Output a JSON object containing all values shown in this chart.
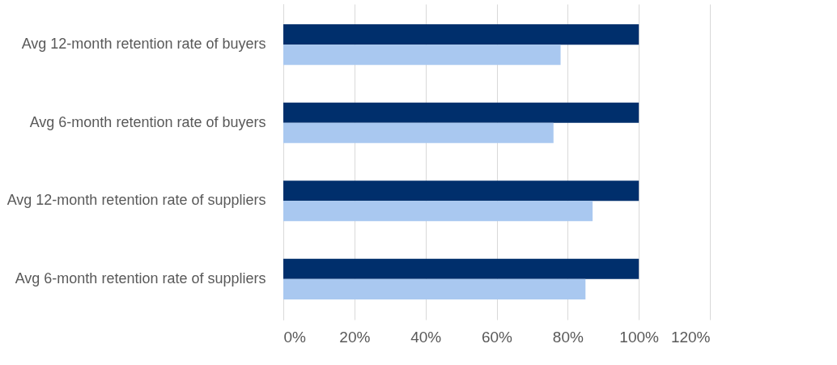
{
  "chart_data": {
    "type": "bar",
    "orientation": "horizontal",
    "categories": [
      "Avg 12-month retention rate of buyers",
      "Avg 6-month retention rate of buyers",
      "Avg 12-month retention rate of suppliers",
      "Avg 6-month retention rate of suppliers"
    ],
    "series": [
      {
        "color": "#002f6c",
        "values": [
          100,
          100,
          100,
          100
        ]
      },
      {
        "color": "#a9c8f0",
        "values": [
          78,
          76,
          87,
          85
        ]
      }
    ],
    "xlim": [
      0,
      120
    ],
    "xticks": [
      {
        "value": 0,
        "label": "0%"
      },
      {
        "value": 20,
        "label": "20%"
      },
      {
        "value": 40,
        "label": "40%"
      },
      {
        "value": 60,
        "label": "60%"
      },
      {
        "value": 80,
        "label": "80%"
      },
      {
        "value": 100,
        "label": "100%"
      },
      {
        "value": 120,
        "label": "120%"
      }
    ],
    "grid": "x",
    "legend": false
  }
}
